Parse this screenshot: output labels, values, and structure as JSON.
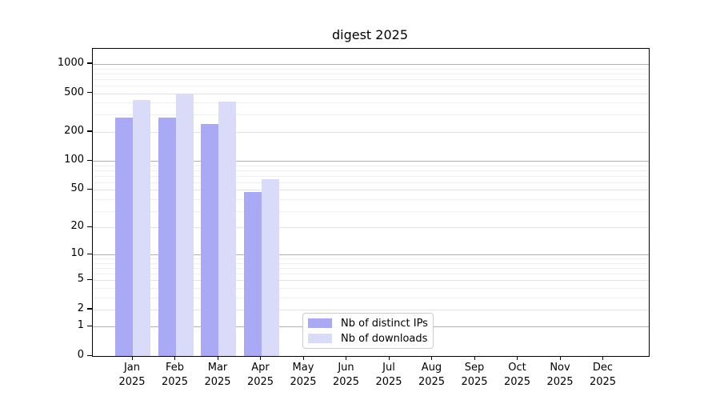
{
  "title": "digest 2025",
  "chart_data": {
    "type": "bar",
    "title": "digest 2025",
    "categories": [
      "Jan 2025",
      "Feb 2025",
      "Mar 2025",
      "Apr 2025",
      "May 2025",
      "Jun 2025",
      "Jul 2025",
      "Aug 2025",
      "Sep 2025",
      "Oct 2025",
      "Nov 2025",
      "Dec 2025"
    ],
    "series": [
      {
        "name": "Nb of distinct IPs",
        "color": "#a9a9f6",
        "values": [
          280,
          278,
          240,
          47,
          null,
          null,
          null,
          null,
          null,
          null,
          null,
          null
        ]
      },
      {
        "name": "Nb of downloads",
        "color": "#dadaf9",
        "values": [
          425,
          500,
          410,
          65,
          null,
          null,
          null,
          null,
          null,
          null,
          null,
          null
        ]
      }
    ],
    "yscale": "log1p",
    "ylim": [
      0,
      1433
    ],
    "y_ticks": [
      0,
      1,
      2,
      5,
      10,
      20,
      50,
      100,
      200,
      500,
      1000
    ],
    "y_major_gridlines": [
      1,
      10,
      100,
      1000
    ],
    "y_light_gridlines": [
      2,
      5,
      20,
      50,
      200,
      500
    ],
    "y_minor_gridlines": [
      3,
      4,
      6,
      7,
      8,
      9,
      30,
      40,
      60,
      70,
      80,
      90,
      300,
      400,
      600,
      700,
      800,
      900
    ],
    "grid": true,
    "legend_position": "lower center inside",
    "xlabel": "",
    "ylabel": ""
  },
  "colors": {
    "axis": "#000000",
    "grid_major": "#b0b0b0",
    "grid_light": "#e2e2e2",
    "grid_minor": "#efefef",
    "background": "#ffffff"
  }
}
